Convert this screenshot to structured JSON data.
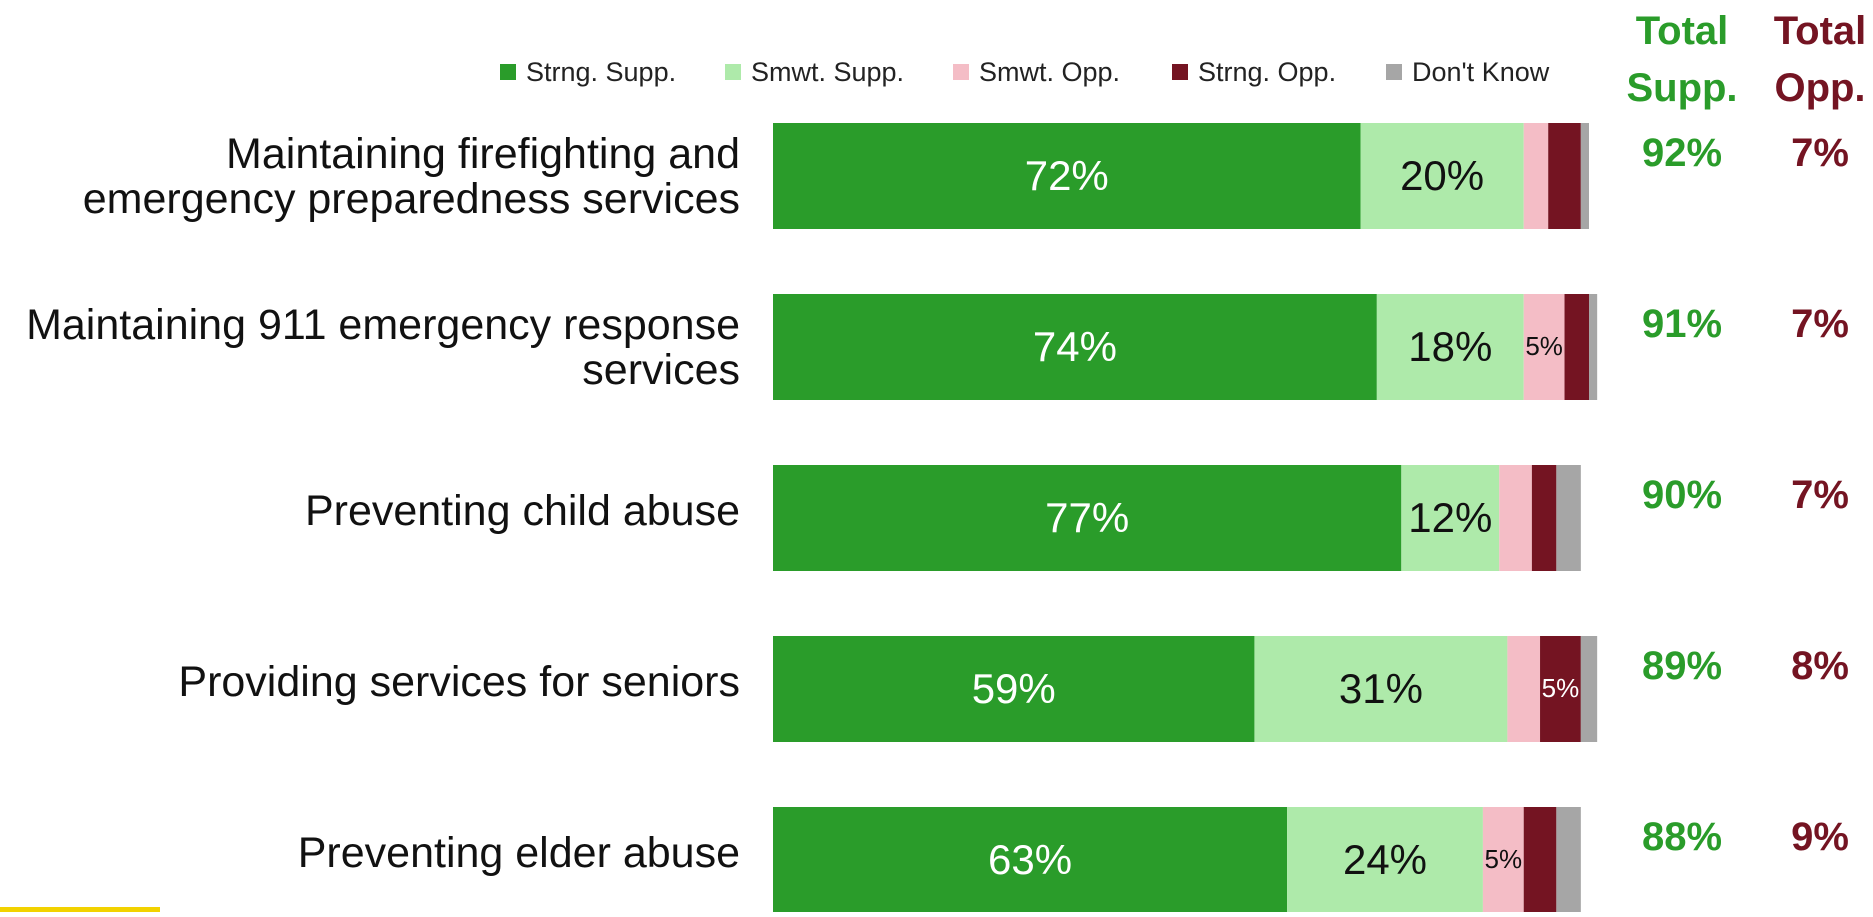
{
  "colors": {
    "strong_support": "#2a9c2a",
    "somewhat_support": "#aeeaaa",
    "somewhat_oppose": "#f4bdc6",
    "strong_oppose": "#741422",
    "dont_know": "#a6a6a6",
    "total_support_text": "#2a9c2a",
    "total_oppose_text": "#741422",
    "accent": "#f2d200"
  },
  "chart_data": {
    "type": "bar",
    "orientation": "horizontal",
    "stacked": true,
    "xlim": [
      0,
      100
    ],
    "legend_position": "top",
    "categories": [
      "Maintaining firefighting and emergency preparedness services",
      "Maintaining 911 emergency response services",
      "Preventing child abuse",
      "Providing services for seniors",
      "Preventing elder abuse"
    ],
    "series": [
      {
        "name": "Strng. Supp.",
        "values": [
          72,
          74,
          77,
          59,
          63
        ]
      },
      {
        "name": "Smwt. Supp.",
        "values": [
          20,
          18,
          12,
          31,
          24
        ]
      },
      {
        "name": "Smwt. Opp.",
        "values": [
          3,
          5,
          4,
          4,
          5
        ]
      },
      {
        "name": "Strng. Opp.",
        "values": [
          4,
          3,
          3,
          5,
          4
        ]
      },
      {
        "name": "Don't Know",
        "values": [
          1,
          1,
          3,
          2,
          3
        ]
      }
    ],
    "data_labels": [
      [
        "72%",
        "20%",
        "",
        "",
        ""
      ],
      [
        "74%",
        "18%",
        "5%",
        "",
        ""
      ],
      [
        "77%",
        "12%",
        "",
        "",
        ""
      ],
      [
        "59%",
        "31%",
        "",
        "5%",
        ""
      ],
      [
        "63%",
        "24%",
        "5%",
        "",
        ""
      ]
    ],
    "total_support_header": [
      "Total",
      "Supp."
    ],
    "total_oppose_header": [
      "Total",
      "Opp."
    ],
    "total_support": [
      "92%",
      "91%",
      "90%",
      "89%",
      "88%"
    ],
    "total_oppose": [
      "7%",
      "7%",
      "7%",
      "8%",
      "9%"
    ]
  }
}
